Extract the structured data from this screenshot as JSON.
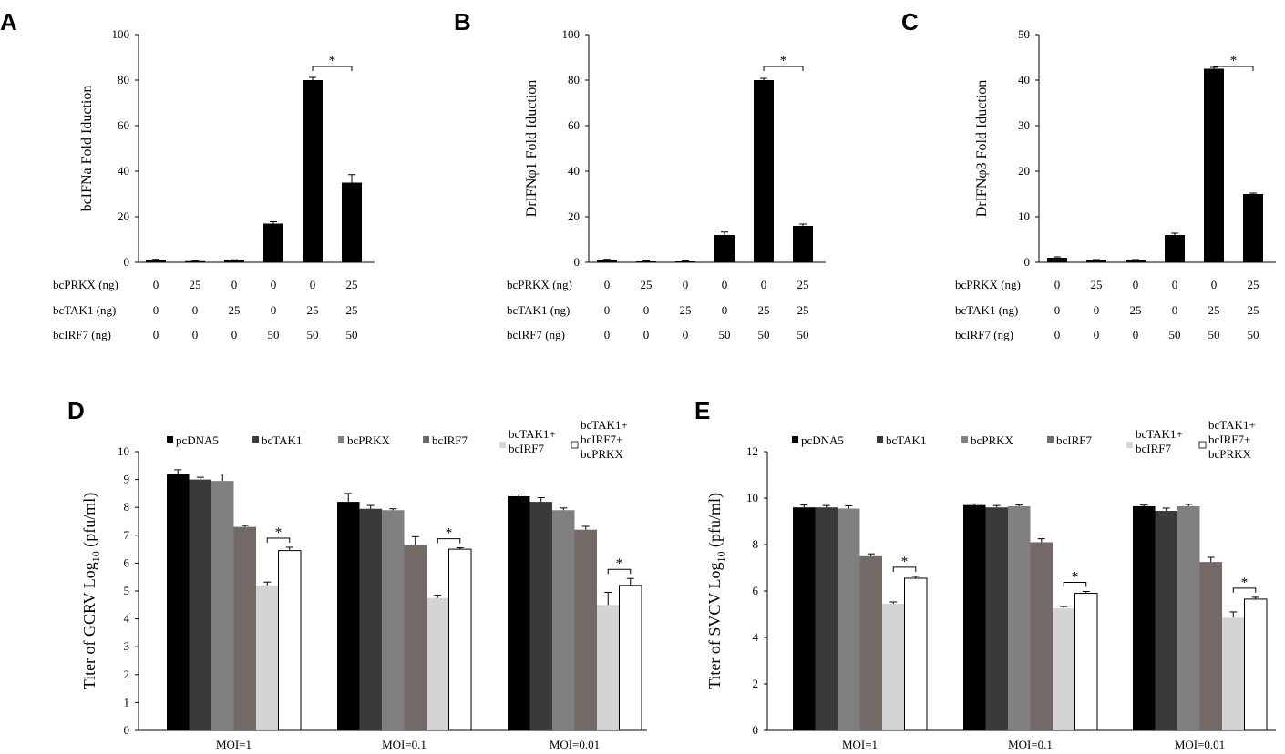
{
  "chart_data": [
    {
      "id": "A",
      "panel_label": "A",
      "type": "bar",
      "ylabel": "bcIFNa Fold Iduction",
      "ylim": [
        0,
        100
      ],
      "yticks": [
        0,
        20,
        40,
        60,
        80,
        100
      ],
      "values": [
        1,
        0.5,
        0.8,
        17,
        80,
        35
      ],
      "errors": [
        0.3,
        0.2,
        0.3,
        0.8,
        1.2,
        3.5
      ],
      "colors": [
        "#000000"
      ],
      "rows": [
        {
          "label": "bcPRKX (ng)",
          "values": [
            "0",
            "25",
            "0",
            "0",
            "0",
            "25"
          ]
        },
        {
          "label": "bcTAK1 (ng)",
          "values": [
            "0",
            "0",
            "25",
            "0",
            "25",
            "25"
          ]
        },
        {
          "label": "bcIRF7 (ng)",
          "values": [
            "0",
            "0",
            "0",
            "50",
            "50",
            "50"
          ]
        }
      ],
      "significance": [
        {
          "from": 4,
          "to": 5,
          "label": "*"
        }
      ]
    },
    {
      "id": "B",
      "panel_label": "B",
      "type": "bar",
      "ylabel": "DrIFNφ1 Fold Iduction",
      "ylim": [
        0,
        100
      ],
      "yticks": [
        0,
        20,
        40,
        60,
        80,
        100
      ],
      "values": [
        1,
        0.4,
        0.4,
        12,
        80,
        16
      ],
      "errors": [
        0.3,
        0.2,
        0.2,
        1.3,
        0.8,
        0.8
      ],
      "colors": [
        "#000000"
      ],
      "rows": [
        {
          "label": "bcPRKX (ng)",
          "values": [
            "0",
            "25",
            "0",
            "0",
            "0",
            "25"
          ]
        },
        {
          "label": "bcTAK1 (ng)",
          "values": [
            "0",
            "0",
            "25",
            "0",
            "25",
            "25"
          ]
        },
        {
          "label": "bcIRF7 (ng)",
          "values": [
            "0",
            "0",
            "0",
            "50",
            "50",
            "50"
          ]
        }
      ],
      "significance": [
        {
          "from": 4,
          "to": 5,
          "label": "*"
        }
      ]
    },
    {
      "id": "C",
      "panel_label": "C",
      "type": "bar",
      "ylabel": "DrIFNφ3 Fold Iduction",
      "ylim": [
        0,
        50
      ],
      "yticks": [
        0,
        10,
        20,
        30,
        40,
        50
      ],
      "values": [
        1,
        0.5,
        0.5,
        6,
        42.5,
        15
      ],
      "errors": [
        0.2,
        0.1,
        0.1,
        0.4,
        0.3,
        0.2
      ],
      "colors": [
        "#000000"
      ],
      "rows": [
        {
          "label": "bcPRKX (ng)",
          "values": [
            "0",
            "25",
            "0",
            "0",
            "0",
            "25"
          ]
        },
        {
          "label": "bcTAK1 (ng)",
          "values": [
            "0",
            "0",
            "25",
            "0",
            "25",
            "25"
          ]
        },
        {
          "label": "bcIRF7 (ng)",
          "values": [
            "0",
            "0",
            "0",
            "50",
            "50",
            "50"
          ]
        }
      ],
      "significance": [
        {
          "from": 4,
          "to": 5,
          "label": "*"
        }
      ]
    },
    {
      "id": "D",
      "panel_label": "D",
      "type": "bar",
      "ylabel_main": "Titer of GCRV Log",
      "ylabel_sub": "10",
      "ylabel_unit": " (pfu/ml)",
      "ylim": [
        0,
        10
      ],
      "yticks": [
        0,
        1,
        2,
        3,
        4,
        5,
        6,
        7,
        8,
        9,
        10
      ],
      "categories": [
        "MOI=1",
        "MOI=0.1",
        "MOI=0.01"
      ],
      "series": [
        {
          "name": "pcDNA5",
          "legend": [
            "pcDNA5"
          ],
          "color": "#000000",
          "values": [
            9.2,
            8.2,
            8.4
          ],
          "errors": [
            0.15,
            0.3,
            0.08
          ]
        },
        {
          "name": "bcTAK1",
          "legend": [
            "bcTAK1"
          ],
          "color": "#3a3a3a",
          "values": [
            9.0,
            7.95,
            8.2
          ],
          "errors": [
            0.08,
            0.12,
            0.15
          ]
        },
        {
          "name": "bcPRKX",
          "legend": [
            "bcPRKX"
          ],
          "color": "#808080",
          "values": [
            8.95,
            7.9,
            7.9
          ],
          "errors": [
            0.25,
            0.05,
            0.08
          ]
        },
        {
          "name": "bcIRF7",
          "legend": [
            "bcIRF7"
          ],
          "color": "#736a68",
          "values": [
            7.3,
            6.65,
            7.2
          ],
          "errors": [
            0.05,
            0.3,
            0.12
          ]
        },
        {
          "name": "bcTAK1+bcIRF7",
          "legend": [
            "bcTAK1+",
            "bcIRF7"
          ],
          "color": "#d4d4d4",
          "values": [
            5.2,
            4.75,
            4.5
          ],
          "errors": [
            0.12,
            0.1,
            0.45
          ]
        },
        {
          "name": "bcTAK1+bcIRF7+bcPRKX",
          "legend": [
            "bcTAK1+",
            "bcIRF7+",
            "bcPRKX"
          ],
          "color": "#ffffff",
          "values": [
            6.45,
            6.5,
            5.2
          ],
          "errors": [
            0.12,
            0.05,
            0.25
          ]
        }
      ],
      "significance": [
        {
          "group": 0,
          "from": 4,
          "to": 5,
          "label": "*"
        },
        {
          "group": 1,
          "from": 4,
          "to": 5,
          "label": "*"
        },
        {
          "group": 2,
          "from": 4,
          "to": 5,
          "label": "*"
        }
      ]
    },
    {
      "id": "E",
      "panel_label": "E",
      "type": "bar",
      "ylabel_main": "Titer of SVCV Log",
      "ylabel_sub": "10",
      "ylabel_unit": " (pfu/ml)",
      "ylim": [
        0,
        12
      ],
      "yticks": [
        0,
        2,
        4,
        6,
        8,
        10,
        12
      ],
      "categories": [
        "MOI=1",
        "MOI=0.1",
        "MOI=0.01"
      ],
      "series": [
        {
          "name": "pcDNA5",
          "legend": [
            "pcDNA5"
          ],
          "color": "#000000",
          "values": [
            9.6,
            9.7,
            9.65
          ],
          "errors": [
            0.1,
            0.05,
            0.05
          ]
        },
        {
          "name": "bcTAK1",
          "legend": [
            "bcTAK1"
          ],
          "color": "#3a3a3a",
          "values": [
            9.6,
            9.6,
            9.45
          ],
          "errors": [
            0.08,
            0.08,
            0.12
          ]
        },
        {
          "name": "bcPRKX",
          "legend": [
            "bcPRKX"
          ],
          "color": "#808080",
          "values": [
            9.55,
            9.65,
            9.65
          ],
          "errors": [
            0.12,
            0.05,
            0.08
          ]
        },
        {
          "name": "bcIRF7",
          "legend": [
            "bcIRF7"
          ],
          "color": "#736a68",
          "values": [
            7.5,
            8.1,
            7.25
          ],
          "errors": [
            0.1,
            0.15,
            0.2
          ]
        },
        {
          "name": "bcTAK1+bcIRF7",
          "legend": [
            "bcTAK1+",
            "bcIRF7"
          ],
          "color": "#d4d4d4",
          "values": [
            5.45,
            5.25,
            4.85
          ],
          "errors": [
            0.08,
            0.08,
            0.25
          ]
        },
        {
          "name": "bcTAK1+bcIRF7+bcPRKX",
          "legend": [
            "bcTAK1+",
            "bcIRF7+",
            "bcPRKX"
          ],
          "color": "#ffffff",
          "values": [
            6.55,
            5.9,
            5.65
          ],
          "errors": [
            0.08,
            0.08,
            0.08
          ]
        }
      ],
      "significance": [
        {
          "group": 0,
          "from": 4,
          "to": 5,
          "label": "*"
        },
        {
          "group": 1,
          "from": 4,
          "to": 5,
          "label": "*"
        },
        {
          "group": 2,
          "from": 4,
          "to": 5,
          "label": "*"
        }
      ]
    }
  ]
}
